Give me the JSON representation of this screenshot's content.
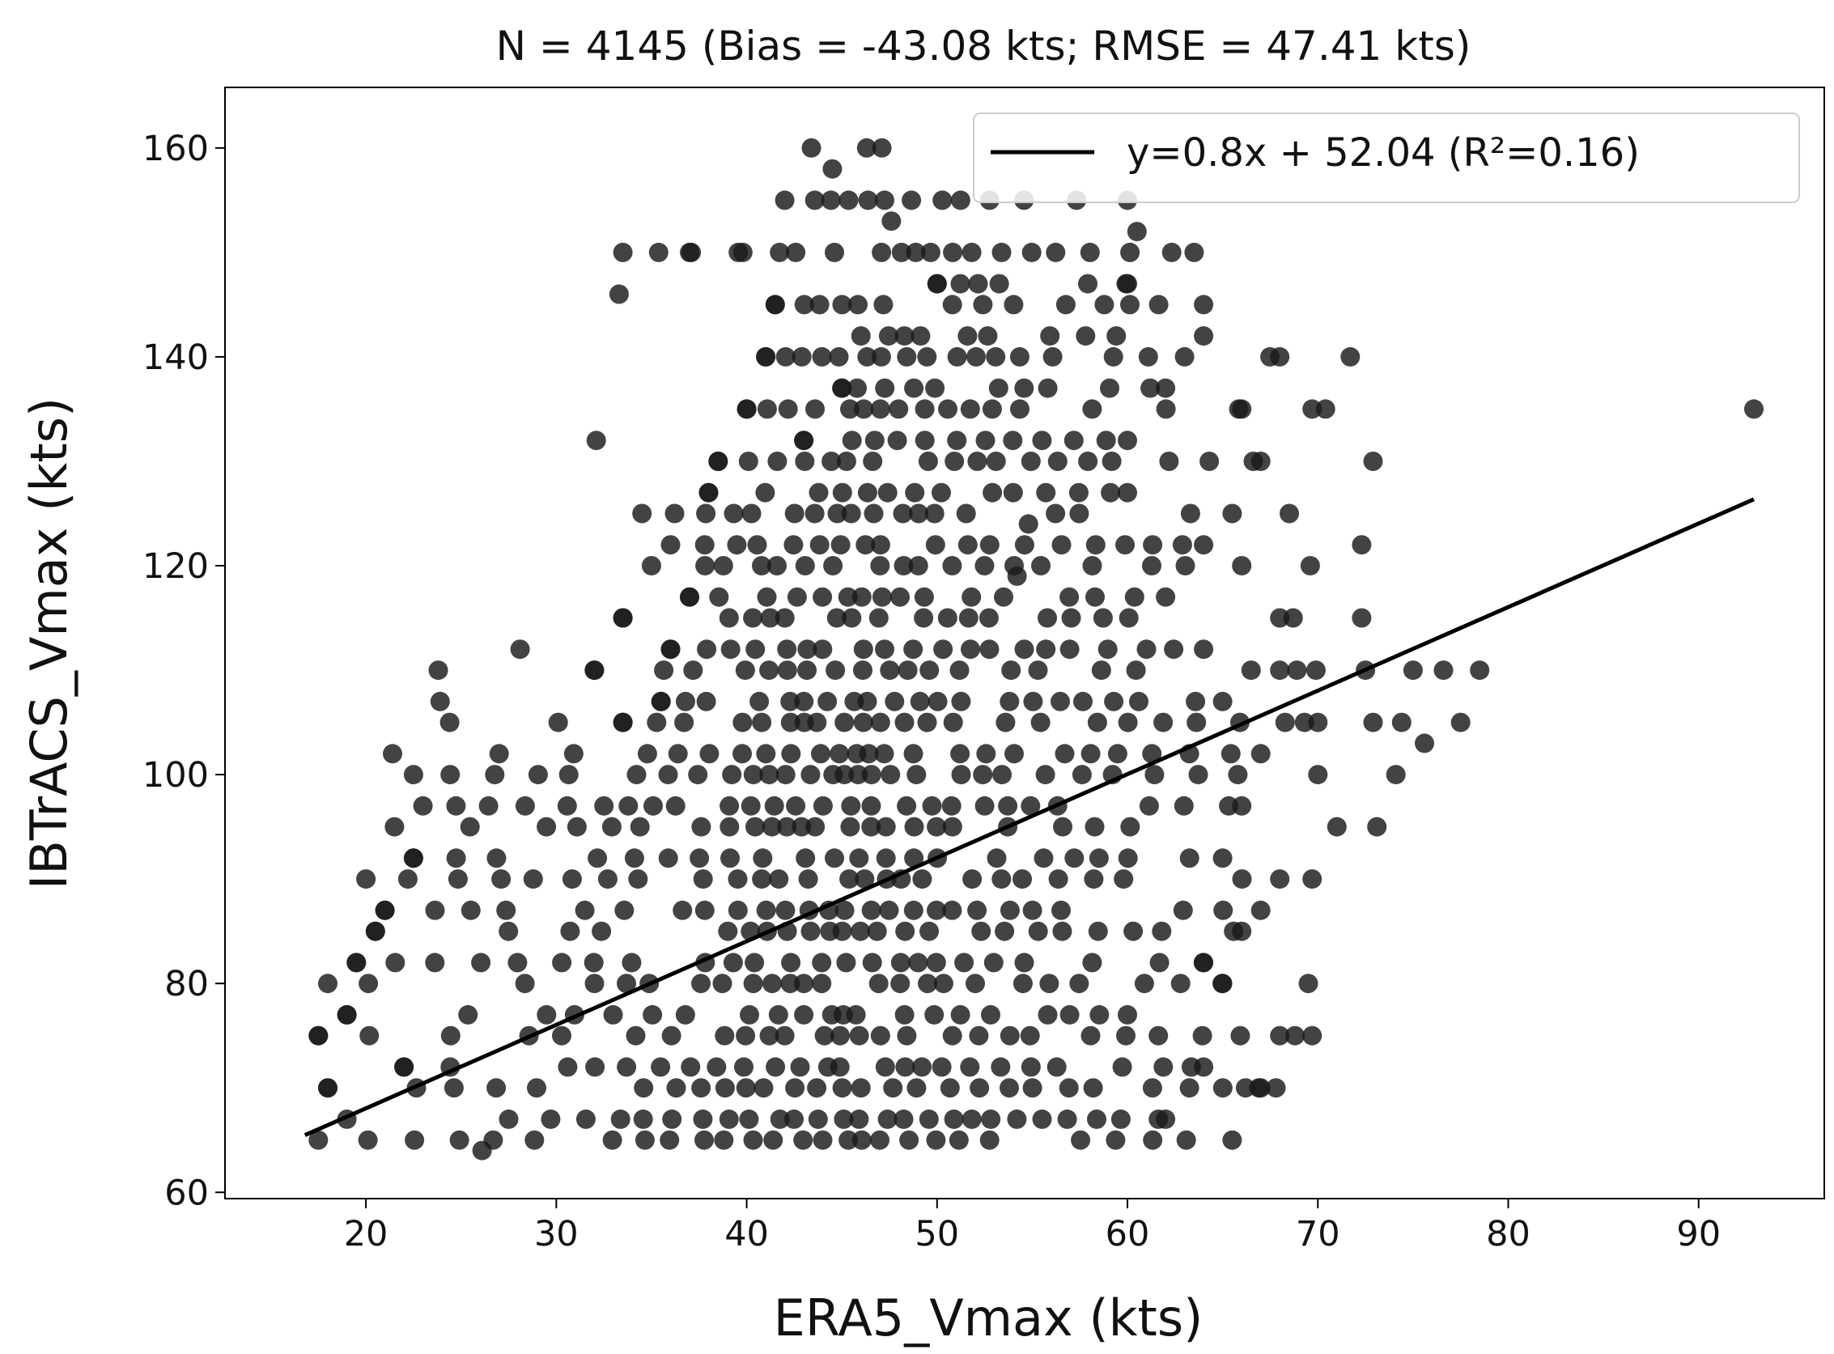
{
  "chart_data": {
    "type": "scatter",
    "title": "N = 4145 (Bias = -43.08 kts; RMSE = 47.41 kts)",
    "xlabel": "ERA5_Vmax (kts)",
    "ylabel": "IBTrACS_Vmax (kts)",
    "xlim": [
      12.6,
      96.6
    ],
    "ylim": [
      59.4,
      165.8
    ],
    "xticks": [
      "20",
      "30",
      "40",
      "50",
      "60",
      "70",
      "80",
      "90"
    ],
    "yticks": [
      "60",
      "80",
      "100",
      "120",
      "140",
      "160"
    ],
    "grid": false,
    "legend": {
      "placement": "top-right",
      "entries": [
        "y=0.8x + 52.04 (R²=0.16)"
      ]
    },
    "fit_line": {
      "label": "y=0.8x + 52.04 (R²=0.16)",
      "slope": 0.8,
      "intercept": 52.04,
      "x_range": [
        16.8,
        92.9
      ],
      "color": "#000000"
    },
    "series": [
      {
        "marker_color": "#1a1a1a",
        "levels": [
          {
            "y": 65,
            "x_range": [
              17.5,
              65.5
            ]
          },
          {
            "y": 67,
            "x_range": [
              19,
              62
            ]
          },
          {
            "y": 70,
            "x_range": [
              18,
              67
            ]
          },
          {
            "y": 72,
            "x_range": [
              22,
              64
            ]
          },
          {
            "y": 75,
            "x_range": [
              17.5,
              68
            ]
          },
          {
            "y": 77,
            "x_range": [
              19,
              60
            ]
          },
          {
            "y": 80,
            "x_range": [
              18,
              65
            ]
          },
          {
            "y": 82,
            "x_range": [
              19.5,
              64
            ]
          },
          {
            "y": 85,
            "x_range": [
              20.5,
              66
            ]
          },
          {
            "y": 87,
            "x_range": [
              21,
              67
            ]
          },
          {
            "y": 90,
            "x_range": [
              20,
              68
            ]
          },
          {
            "y": 92,
            "x_range": [
              22.5,
              65
            ]
          },
          {
            "y": 95,
            "x_range": [
              21.5,
              71
            ]
          },
          {
            "y": 97,
            "x_range": [
              23,
              66
            ]
          },
          {
            "y": 100,
            "x_range": [
              22.5,
              70
            ]
          },
          {
            "y": 102,
            "x_range": [
              27,
              67
            ]
          },
          {
            "y": 105,
            "x_range": [
              33.5,
              70
            ]
          },
          {
            "y": 107,
            "x_range": [
              35.5,
              65
            ]
          },
          {
            "y": 110,
            "x_range": [
              32,
              68
            ]
          },
          {
            "y": 112,
            "x_range": [
              36,
              64
            ]
          },
          {
            "y": 115,
            "x_range": [
              33.5,
              68
            ]
          },
          {
            "y": 117,
            "x_range": [
              37,
              62
            ]
          },
          {
            "y": 120,
            "x_range": [
              35,
              66
            ]
          },
          {
            "y": 122,
            "x_range": [
              36,
              64
            ]
          },
          {
            "y": 125,
            "x_range": [
              34.5,
              65.5
            ]
          },
          {
            "y": 127,
            "x_range": [
              38,
              60
            ]
          },
          {
            "y": 130,
            "x_range": [
              38.5,
              67
            ]
          },
          {
            "y": 132,
            "x_range": [
              43,
              60
            ]
          },
          {
            "y": 135,
            "x_range": [
              40,
              66
            ]
          },
          {
            "y": 137,
            "x_range": [
              45,
              62
            ]
          },
          {
            "y": 140,
            "x_range": [
              41,
              68
            ]
          },
          {
            "y": 142,
            "x_range": [
              46,
              64
            ]
          },
          {
            "y": 145,
            "x_range": [
              41.5,
              64
            ]
          },
          {
            "y": 147,
            "x_range": [
              50,
              60
            ]
          },
          {
            "y": 150,
            "x_range": [
              33.5,
              63.5
            ]
          },
          {
            "y": 155,
            "x_range": [
              42,
              60
            ]
          }
        ],
        "outliers": [
          [
            23.8,
            110
          ],
          [
            23.9,
            107
          ],
          [
            24.4,
            105
          ],
          [
            21.4,
            102
          ],
          [
            28.1,
            112
          ],
          [
            30.1,
            105
          ],
          [
            32.1,
            132
          ],
          [
            33.3,
            146
          ],
          [
            37.0,
            150
          ],
          [
            39.8,
            150
          ],
          [
            43.4,
            160
          ],
          [
            44.5,
            158
          ],
          [
            46.3,
            160
          ],
          [
            47.1,
            160
          ],
          [
            47.6,
            153
          ],
          [
            60.5,
            152
          ],
          [
            71.7,
            140
          ],
          [
            72.9,
            130
          ],
          [
            69.7,
            135
          ],
          [
            70.4,
            135
          ],
          [
            72.3,
            122
          ],
          [
            72.3,
            115
          ],
          [
            72.5,
            110
          ],
          [
            72.9,
            105
          ],
          [
            74.4,
            105
          ],
          [
            75.0,
            110
          ],
          [
            75.6,
            103
          ],
          [
            76.6,
            110
          ],
          [
            77.5,
            105
          ],
          [
            78.5,
            110
          ],
          [
            68.7,
            115
          ],
          [
            68.9,
            110
          ],
          [
            69.9,
            110
          ],
          [
            69.6,
            120
          ],
          [
            68.5,
            125
          ],
          [
            69.3,
            105
          ],
          [
            73.1,
            95
          ],
          [
            74.1,
            100
          ],
          [
            69.7,
            90
          ],
          [
            69.5,
            80
          ],
          [
            68.8,
            75
          ],
          [
            69.7,
            75
          ],
          [
            67.8,
            70
          ],
          [
            66.2,
            70
          ],
          [
            92.9,
            135
          ],
          [
            26.1,
            64
          ],
          [
            54.8,
            124
          ],
          [
            54.2,
            119
          ]
        ]
      }
    ]
  }
}
